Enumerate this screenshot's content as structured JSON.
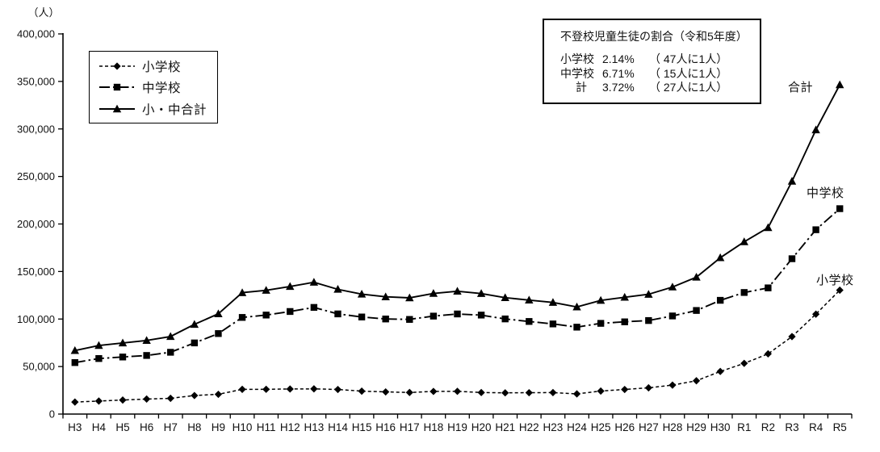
{
  "unit_label": "（人）",
  "legend": {
    "items": [
      {
        "label": "小学校"
      },
      {
        "label": "中学校"
      },
      {
        "label": "小・中合計"
      }
    ]
  },
  "annotation_box": {
    "title": "不登校児童生徒の割合（令和5年度）",
    "rows": [
      {
        "label": "小学校",
        "percent": "2.14%",
        "note": "（ 47人に1人）"
      },
      {
        "label": "中学校",
        "percent": "6.71%",
        "note": "（ 15人に1人）"
      },
      {
        "label": "計",
        "percent": "3.72%",
        "note": "（ 27人に1人）"
      }
    ]
  },
  "series_end_labels": {
    "total": "合計",
    "junior_high": "中学校",
    "elementary": "小学校"
  },
  "chart_data": {
    "type": "line",
    "title": "",
    "xlabel": "",
    "ylabel": "（人）",
    "ylim": [
      0,
      400000
    ],
    "ytick_interval": 50000,
    "grid": false,
    "legend_position": "upper-left-inside",
    "color": "#000000",
    "categories": [
      "H3",
      "H4",
      "H5",
      "H6",
      "H7",
      "H8",
      "H9",
      "H10",
      "H11",
      "H12",
      "H13",
      "H14",
      "H15",
      "H16",
      "H17",
      "H18",
      "H19",
      "H20",
      "H21",
      "H22",
      "H23",
      "H24",
      "H25",
      "H26",
      "H27",
      "H28",
      "H29",
      "H30",
      "R1",
      "R2",
      "R3",
      "R4",
      "R5"
    ],
    "series": [
      {
        "name": "小学校",
        "marker": "diamond",
        "line_style": "dashed",
        "values": [
          12645,
          13710,
          14769,
          15786,
          16569,
          19498,
          20765,
          26017,
          26047,
          26373,
          26511,
          25869,
          24077,
          23318,
          22709,
          23825,
          23927,
          22652,
          22327,
          22463,
          22622,
          21243,
          24175,
          25864,
          27583,
          30448,
          35032,
          44841,
          53350,
          63350,
          81498,
          105112,
          130370
        ]
      },
      {
        "name": "中学校",
        "marker": "square",
        "line_style": "dashdot",
        "values": [
          54172,
          58421,
          60039,
          61663,
          65022,
          74853,
          84701,
          101675,
          104180,
          107913,
          112211,
          105383,
          102149,
          100040,
          99578,
          103069,
          105328,
          104153,
          100105,
          97428,
          94836,
          91446,
          95442,
          97033,
          98408,
          103235,
          108999,
          119687,
          127922,
          132777,
          163442,
          193936,
          216112
        ]
      },
      {
        "name": "小・中合計",
        "marker": "triangle",
        "line_style": "solid",
        "values": [
          66817,
          72131,
          74808,
          77449,
          81591,
          94351,
          105466,
          127692,
          130227,
          134286,
          138722,
          131252,
          126226,
          123358,
          122287,
          126894,
          129255,
          126805,
          122432,
          119891,
          117458,
          112689,
          119617,
          122897,
          125991,
          133683,
          144031,
          164528,
          181272,
          196127,
          244940,
          299048,
          346482
        ]
      }
    ]
  }
}
